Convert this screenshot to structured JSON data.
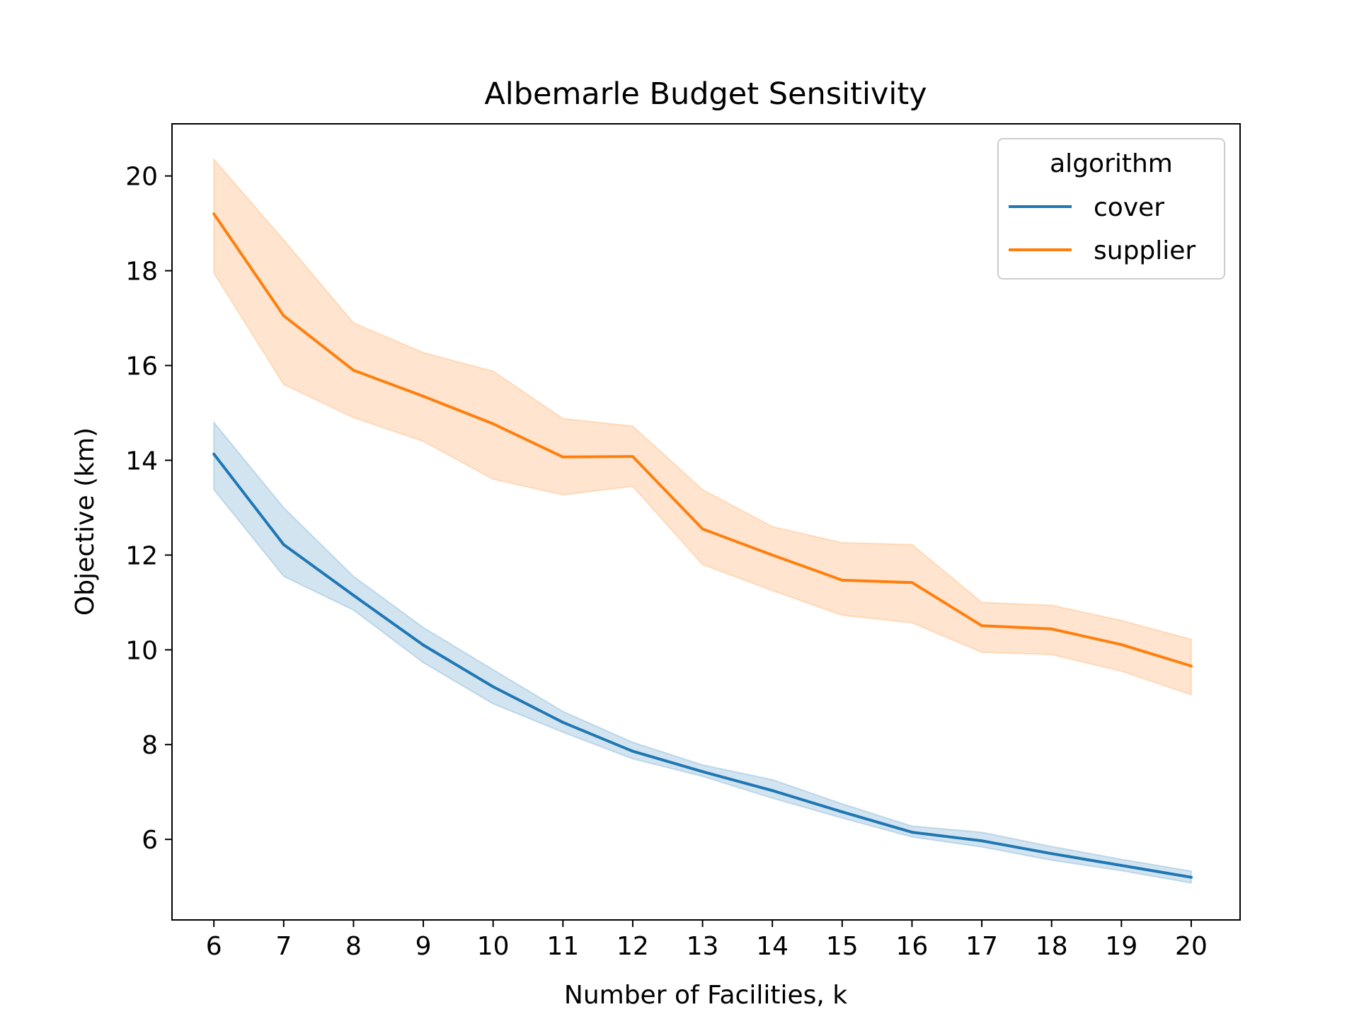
{
  "chart_data": {
    "type": "line",
    "title": "Albemarle Budget Sensitivity",
    "xlabel": "Number of Facilities, k",
    "ylabel": "Objective (km)",
    "x": [
      6,
      7,
      8,
      9,
      10,
      11,
      12,
      13,
      14,
      15,
      16,
      17,
      18,
      19,
      20
    ],
    "xlim": [
      5.4,
      20.7
    ],
    "ylim": [
      4.3,
      21.1
    ],
    "yticks": [
      6,
      8,
      10,
      12,
      14,
      16,
      18,
      20
    ],
    "grid": false,
    "legend": {
      "title": "algorithm",
      "position": "top-right"
    },
    "series": [
      {
        "name": "cover",
        "color": "#1f77b4",
        "values": [
          14.13,
          12.22,
          11.15,
          10.1,
          9.22,
          8.47,
          7.86,
          7.43,
          7.03,
          6.58,
          6.15,
          5.97,
          5.7,
          5.45,
          5.2
        ],
        "lower": [
          13.38,
          11.55,
          10.84,
          9.73,
          8.86,
          8.26,
          7.7,
          7.33,
          6.87,
          6.45,
          6.05,
          5.84,
          5.56,
          5.34,
          5.08
        ],
        "upper": [
          14.8,
          13.0,
          11.55,
          10.47,
          9.58,
          8.7,
          8.05,
          7.57,
          7.26,
          6.75,
          6.28,
          6.15,
          5.85,
          5.58,
          5.33
        ]
      },
      {
        "name": "supplier",
        "color": "#ff7f0e",
        "values": [
          19.2,
          17.05,
          15.9,
          15.35,
          14.77,
          14.07,
          14.08,
          12.55,
          12.0,
          11.47,
          11.42,
          10.51,
          10.44,
          10.11,
          9.66
        ],
        "lower": [
          17.95,
          15.6,
          14.9,
          14.4,
          13.6,
          13.27,
          13.45,
          11.8,
          11.25,
          10.73,
          10.57,
          9.95,
          9.9,
          9.55,
          9.05
        ],
        "upper": [
          20.35,
          18.65,
          16.9,
          16.27,
          15.88,
          14.88,
          14.72,
          13.38,
          12.6,
          12.26,
          12.22,
          11.0,
          10.94,
          10.62,
          10.22
        ]
      }
    ]
  }
}
